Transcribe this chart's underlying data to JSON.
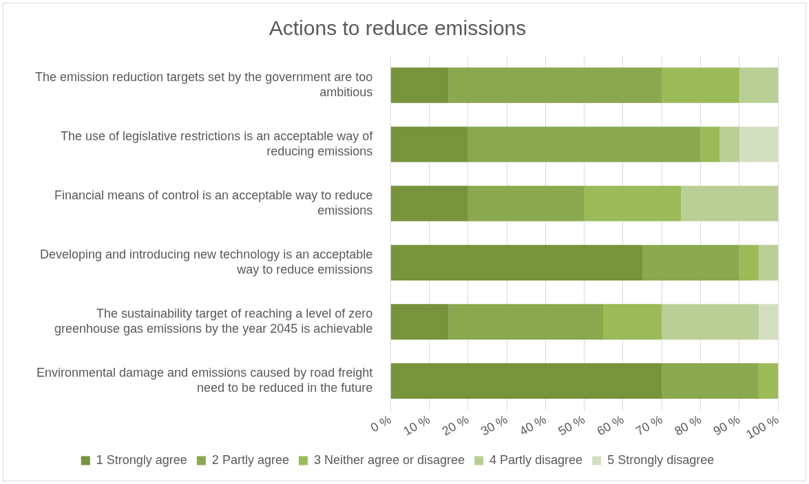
{
  "chart_data": {
    "type": "bar",
    "orientation": "horizontal",
    "stacked": true,
    "title": "Actions to reduce emissions",
    "categories": [
      "The emission reduction targets set by the government are too ambitious",
      "The use of legislative restrictions is an acceptable way of reducing emissions",
      "Financial means of control is an acceptable way to reduce emissions",
      "Developing and introducing new technology is an acceptable way to reduce emissions",
      "The sustainability target of reaching a level of zero greenhouse gas emissions by the year 2045 is achievable",
      "Environmental damage and emissions caused by road freight need to be reduced in the future"
    ],
    "series": [
      {
        "name": "1 Strongly agree",
        "color": "#77933c",
        "values": [
          15,
          20,
          20,
          65,
          15,
          70
        ]
      },
      {
        "name": "2 Partly agree",
        "color": "#8aa84e",
        "values": [
          55,
          60,
          30,
          25,
          40,
          25
        ]
      },
      {
        "name": "3 Neither agree or disagree",
        "color": "#9bbb59",
        "values": [
          20,
          5,
          25,
          5,
          15,
          5
        ]
      },
      {
        "name": "4 Partly disagree",
        "color": "#bacf96",
        "values": [
          10,
          5,
          25,
          5,
          25,
          0
        ]
      },
      {
        "name": "5 Strongly disagree",
        "color": "#d4dfc0",
        "values": [
          0,
          10,
          0,
          0,
          5,
          0
        ]
      }
    ],
    "xlim": [
      0,
      100
    ],
    "xticks": [
      {
        "value": 0,
        "label": "0 %"
      },
      {
        "value": 10,
        "label": "10 %"
      },
      {
        "value": 20,
        "label": "20 %"
      },
      {
        "value": 30,
        "label": "30 %"
      },
      {
        "value": 40,
        "label": "40 %"
      },
      {
        "value": 50,
        "label": "50 %"
      },
      {
        "value": 60,
        "label": "60 %"
      },
      {
        "value": 70,
        "label": "70 %"
      },
      {
        "value": 80,
        "label": "80 %"
      },
      {
        "value": 90,
        "label": "90 %"
      },
      {
        "value": 100,
        "label": "100 %"
      }
    ],
    "grid": "x",
    "legend": "bottom"
  }
}
